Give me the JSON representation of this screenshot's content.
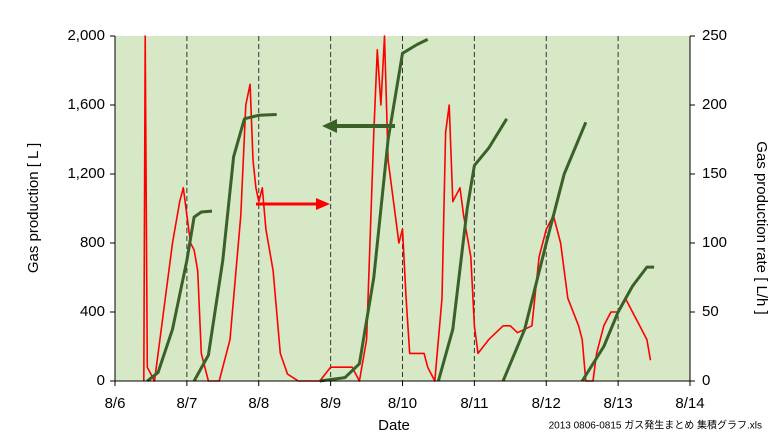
{
  "chart_data": {
    "type": "line",
    "x_label": "Date",
    "y_label": "Gas production [ L ]",
    "y2_label": "Gas production rate [ L/h ]",
    "footnote": "2013 0806-0815 ガス発生まとめ 集積グラフ.xls",
    "xlim": [
      6,
      14
    ],
    "xticks": [
      {
        "value": 6,
        "label": "8/6"
      },
      {
        "value": 7,
        "label": "8/7"
      },
      {
        "value": 8,
        "label": "8/8"
      },
      {
        "value": 9,
        "label": "8/9"
      },
      {
        "value": 10,
        "label": "8/10"
      },
      {
        "value": 11,
        "label": "8/11"
      },
      {
        "value": 12,
        "label": "8/12"
      },
      {
        "value": 13,
        "label": "8/13"
      },
      {
        "value": 14,
        "label": "8/14"
      }
    ],
    "ylim": [
      0,
      2000
    ],
    "yticks": [
      0,
      400,
      800,
      {
        "value": 1200,
        "label": "1,200"
      },
      {
        "value": 1600,
        "label": "1,600"
      },
      {
        "value": 2000,
        "label": "2,000"
      }
    ],
    "y2lim": [
      0,
      250
    ],
    "y2ticks": [
      0,
      50,
      100,
      150,
      200,
      250
    ],
    "x_grid": true,
    "background": "#d7e8c6",
    "series": [
      {
        "color": "#ff0000",
        "axis": "y2",
        "x": [
          6.4,
          6.42,
          6.45,
          6.55,
          6.65,
          6.8,
          6.9,
          6.95,
          7.0,
          7.05,
          7.1,
          7.15,
          7.2,
          7.3,
          7.45,
          7.6,
          7.75,
          7.82,
          7.88,
          7.92,
          7.96,
          8.0,
          8.05,
          8.1,
          8.2,
          8.3,
          8.4,
          8.55,
          8.85,
          9.0,
          9.3,
          9.4,
          9.5,
          9.6,
          9.65,
          9.7,
          9.75,
          9.8,
          9.9,
          9.95,
          10.0,
          10.05,
          10.1,
          10.3,
          10.35,
          10.45,
          10.55,
          10.6,
          10.65,
          10.7,
          10.8,
          10.85,
          10.95,
          11.0,
          11.05,
          11.2,
          11.3,
          11.4,
          11.5,
          11.6,
          11.8,
          11.9,
          12.0,
          12.1,
          12.2,
          12.3,
          12.45,
          12.5,
          12.55,
          12.65,
          12.7,
          12.8,
          12.9,
          13.0,
          13.1,
          13.2,
          13.3,
          13.4,
          13.45
        ],
        "values": [
          0,
          250,
          10,
          0,
          40,
          100,
          130,
          140,
          120,
          100,
          95,
          80,
          20,
          0,
          0,
          30,
          120,
          200,
          215,
          160,
          140,
          130,
          140,
          110,
          80,
          20,
          5,
          0,
          0,
          10,
          10,
          0,
          30,
          180,
          240,
          200,
          250,
          160,
          120,
          100,
          110,
          60,
          20,
          20,
          10,
          0,
          60,
          180,
          200,
          130,
          140,
          120,
          90,
          40,
          20,
          30,
          35,
          40,
          40,
          35,
          40,
          90,
          110,
          120,
          100,
          60,
          40,
          30,
          0,
          0,
          20,
          40,
          50,
          50,
          60,
          50,
          40,
          30,
          15
        ]
      },
      {
        "color": "#3a6128",
        "axis": "y",
        "x": [
          6.45,
          6.6,
          6.8,
          7.0,
          7.1,
          7.2,
          7.35,
          null,
          7.1,
          7.3,
          7.5,
          7.65,
          7.8,
          8.0,
          8.25,
          null,
          8.85,
          9.2,
          9.4,
          9.6,
          9.8,
          10.0,
          10.2,
          10.35,
          null,
          10.5,
          10.7,
          10.9,
          11.0,
          11.2,
          11.45,
          null,
          11.4,
          11.7,
          12.0,
          12.25,
          12.55,
          null,
          12.5,
          12.8,
          13.0,
          13.2,
          13.4,
          13.5
        ],
        "values": [
          0,
          50,
          300,
          700,
          950,
          980,
          985,
          null,
          0,
          150,
          700,
          1300,
          1520,
          1540,
          1545,
          null,
          0,
          20,
          100,
          600,
          1400,
          1900,
          1950,
          1980,
          null,
          0,
          300,
          1000,
          1250,
          1350,
          1520,
          null,
          0,
          300,
          800,
          1200,
          1500,
          null,
          0,
          200,
          400,
          550,
          660,
          660
        ]
      }
    ]
  }
}
